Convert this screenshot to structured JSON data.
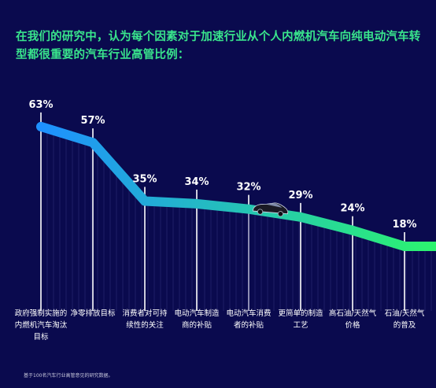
{
  "title": "在我们的研究中，认为每个因素对于加速行业从个人内燃机汽车向纯电动汽车转型都很重要的汽车行业高管比例：",
  "footnote": "基于100名汽车行业高管意见的研究数据。",
  "colors": {
    "background": "#0a0a4e",
    "title": "#39e58c",
    "line_start": "#1e90ff",
    "line_end": "#2cf56e",
    "text": "#ffffff"
  },
  "icon": "electric-car-icon",
  "chart_data": {
    "type": "line",
    "categories": [
      [
        "政府强制实施的",
        "内燃机汽车淘汰",
        "目标"
      ],
      [
        "净零排放目标"
      ],
      [
        "消费者对可持",
        "续性的关注"
      ],
      [
        "电动汽车制造",
        "商的补贴"
      ],
      [
        "电动汽车消费",
        "者的补贴"
      ],
      [
        "更简单的制造",
        "工艺"
      ],
      [
        "高石油/天然气",
        "价格"
      ],
      [
        "石油/天然气",
        "的普及"
      ]
    ],
    "values": [
      63,
      57,
      35,
      34,
      32,
      29,
      24,
      18
    ],
    "value_labels": [
      "63%",
      "57%",
      "35%",
      "34%",
      "32%",
      "29%",
      "24%",
      "18%"
    ],
    "unit": "%"
  }
}
